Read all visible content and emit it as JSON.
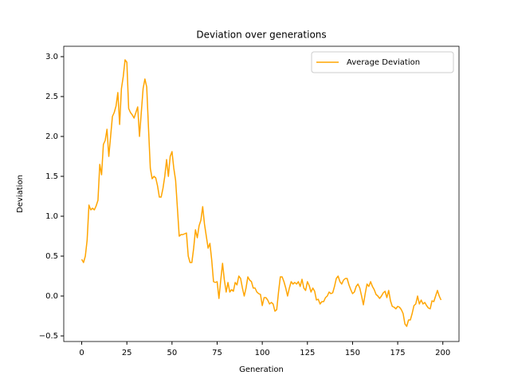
{
  "chart_data": {
    "type": "line",
    "title": "Deviation over generations",
    "xlabel": "Generation",
    "ylabel": "Deviation",
    "x": [
      0,
      1,
      2,
      3,
      4,
      5,
      6,
      7,
      8,
      9,
      10,
      11,
      12,
      13,
      14,
      15,
      16,
      17,
      18,
      19,
      20,
      21,
      22,
      23,
      24,
      25,
      26,
      27,
      28,
      29,
      30,
      31,
      32,
      33,
      34,
      35,
      36,
      37,
      38,
      39,
      40,
      41,
      42,
      43,
      44,
      45,
      46,
      47,
      48,
      49,
      50,
      51,
      52,
      53,
      54,
      55,
      56,
      57,
      58,
      59,
      60,
      61,
      62,
      63,
      64,
      65,
      66,
      67,
      68,
      69,
      70,
      71,
      72,
      73,
      74,
      75,
      76,
      77,
      78,
      79,
      80,
      81,
      82,
      83,
      84,
      85,
      86,
      87,
      88,
      89,
      90,
      91,
      92,
      93,
      94,
      95,
      96,
      97,
      98,
      99,
      100,
      101,
      102,
      103,
      104,
      105,
      106,
      107,
      108,
      109,
      110,
      111,
      112,
      113,
      114,
      115,
      116,
      117,
      118,
      119,
      120,
      121,
      122,
      123,
      124,
      125,
      126,
      127,
      128,
      129,
      130,
      131,
      132,
      133,
      134,
      135,
      136,
      137,
      138,
      139,
      140,
      141,
      142,
      143,
      144,
      145,
      146,
      147,
      148,
      149,
      150,
      151,
      152,
      153,
      154,
      155,
      156,
      157,
      158,
      159,
      160,
      161,
      162,
      163,
      164,
      165,
      166,
      167,
      168,
      169,
      170,
      171,
      172,
      173,
      174,
      175,
      176,
      177,
      178,
      179,
      180,
      181,
      182,
      183,
      184,
      185,
      186,
      187,
      188,
      189,
      190,
      191,
      192,
      193,
      194,
      195,
      196,
      197,
      198,
      199
    ],
    "series": [
      {
        "name": "Average Deviation",
        "color": "#ffa500",
        "values": [
          0.46,
          0.42,
          0.5,
          0.7,
          1.14,
          1.08,
          1.1,
          1.08,
          1.13,
          1.2,
          1.65,
          1.52,
          1.9,
          1.95,
          2.09,
          1.75,
          2.0,
          2.25,
          2.3,
          2.38,
          2.55,
          2.15,
          2.6,
          2.75,
          2.96,
          2.93,
          2.35,
          2.3,
          2.27,
          2.23,
          2.3,
          2.37,
          2.0,
          2.3,
          2.6,
          2.72,
          2.62,
          2.1,
          1.6,
          1.47,
          1.5,
          1.48,
          1.38,
          1.24,
          1.24,
          1.35,
          1.5,
          1.71,
          1.5,
          1.75,
          1.81,
          1.6,
          1.45,
          1.1,
          0.75,
          0.77,
          0.77,
          0.78,
          0.79,
          0.5,
          0.42,
          0.42,
          0.6,
          0.83,
          0.73,
          0.88,
          0.95,
          1.12,
          0.9,
          0.75,
          0.6,
          0.66,
          0.45,
          0.18,
          0.17,
          0.18,
          -0.03,
          0.2,
          0.41,
          0.2,
          0.05,
          0.17,
          0.05,
          0.08,
          0.06,
          0.17,
          0.14,
          0.25,
          0.22,
          0.1,
          0.0,
          0.1,
          0.24,
          0.2,
          0.18,
          0.1,
          0.1,
          0.05,
          0.03,
          0.02,
          -0.12,
          -0.02,
          -0.02,
          -0.05,
          -0.1,
          -0.08,
          -0.1,
          -0.19,
          -0.17,
          0.05,
          0.24,
          0.24,
          0.18,
          0.1,
          0.0,
          0.1,
          0.18,
          0.15,
          0.17,
          0.15,
          0.18,
          0.12,
          0.21,
          0.1,
          0.07,
          0.18,
          0.13,
          0.05,
          0.1,
          0.06,
          -0.05,
          -0.04,
          -0.1,
          -0.07,
          -0.07,
          -0.02,
          0.0,
          0.05,
          0.03,
          0.04,
          0.12,
          0.22,
          0.25,
          0.18,
          0.15,
          0.2,
          0.22,
          0.22,
          0.14,
          0.08,
          0.03,
          0.05,
          0.12,
          0.15,
          0.1,
          0.0,
          -0.11,
          0.03,
          0.15,
          0.12,
          0.18,
          0.12,
          0.08,
          0.02,
          0.0,
          -0.03,
          0.0,
          0.04,
          0.06,
          -0.02,
          0.07,
          -0.06,
          -0.13,
          -0.14,
          -0.16,
          -0.13,
          -0.14,
          -0.17,
          -0.22,
          -0.35,
          -0.38,
          -0.3,
          -0.3,
          -0.22,
          -0.12,
          -0.1,
          0.0,
          -0.1,
          -0.05,
          -0.1,
          -0.08,
          -0.12,
          -0.15,
          -0.16,
          -0.06,
          -0.07,
          0.0,
          0.07,
          0.0,
          -0.05
        ]
      }
    ],
    "xlim": [
      -9.95,
      208.95
    ],
    "ylim": [
      -0.57,
      3.13
    ],
    "xticks": [
      0,
      25,
      50,
      75,
      100,
      125,
      150,
      175,
      200
    ],
    "yticks": [
      {
        "value": -0.5,
        "label": "−0.5"
      },
      {
        "value": 0,
        "label": "0.0"
      },
      0.5,
      {
        "value": 1,
        "label": "1.0"
      },
      1.5,
      {
        "value": 2,
        "label": "2.0"
      },
      2.5,
      {
        "value": 3,
        "label": "3.0"
      }
    ],
    "grid": false,
    "legend": "upper right"
  }
}
